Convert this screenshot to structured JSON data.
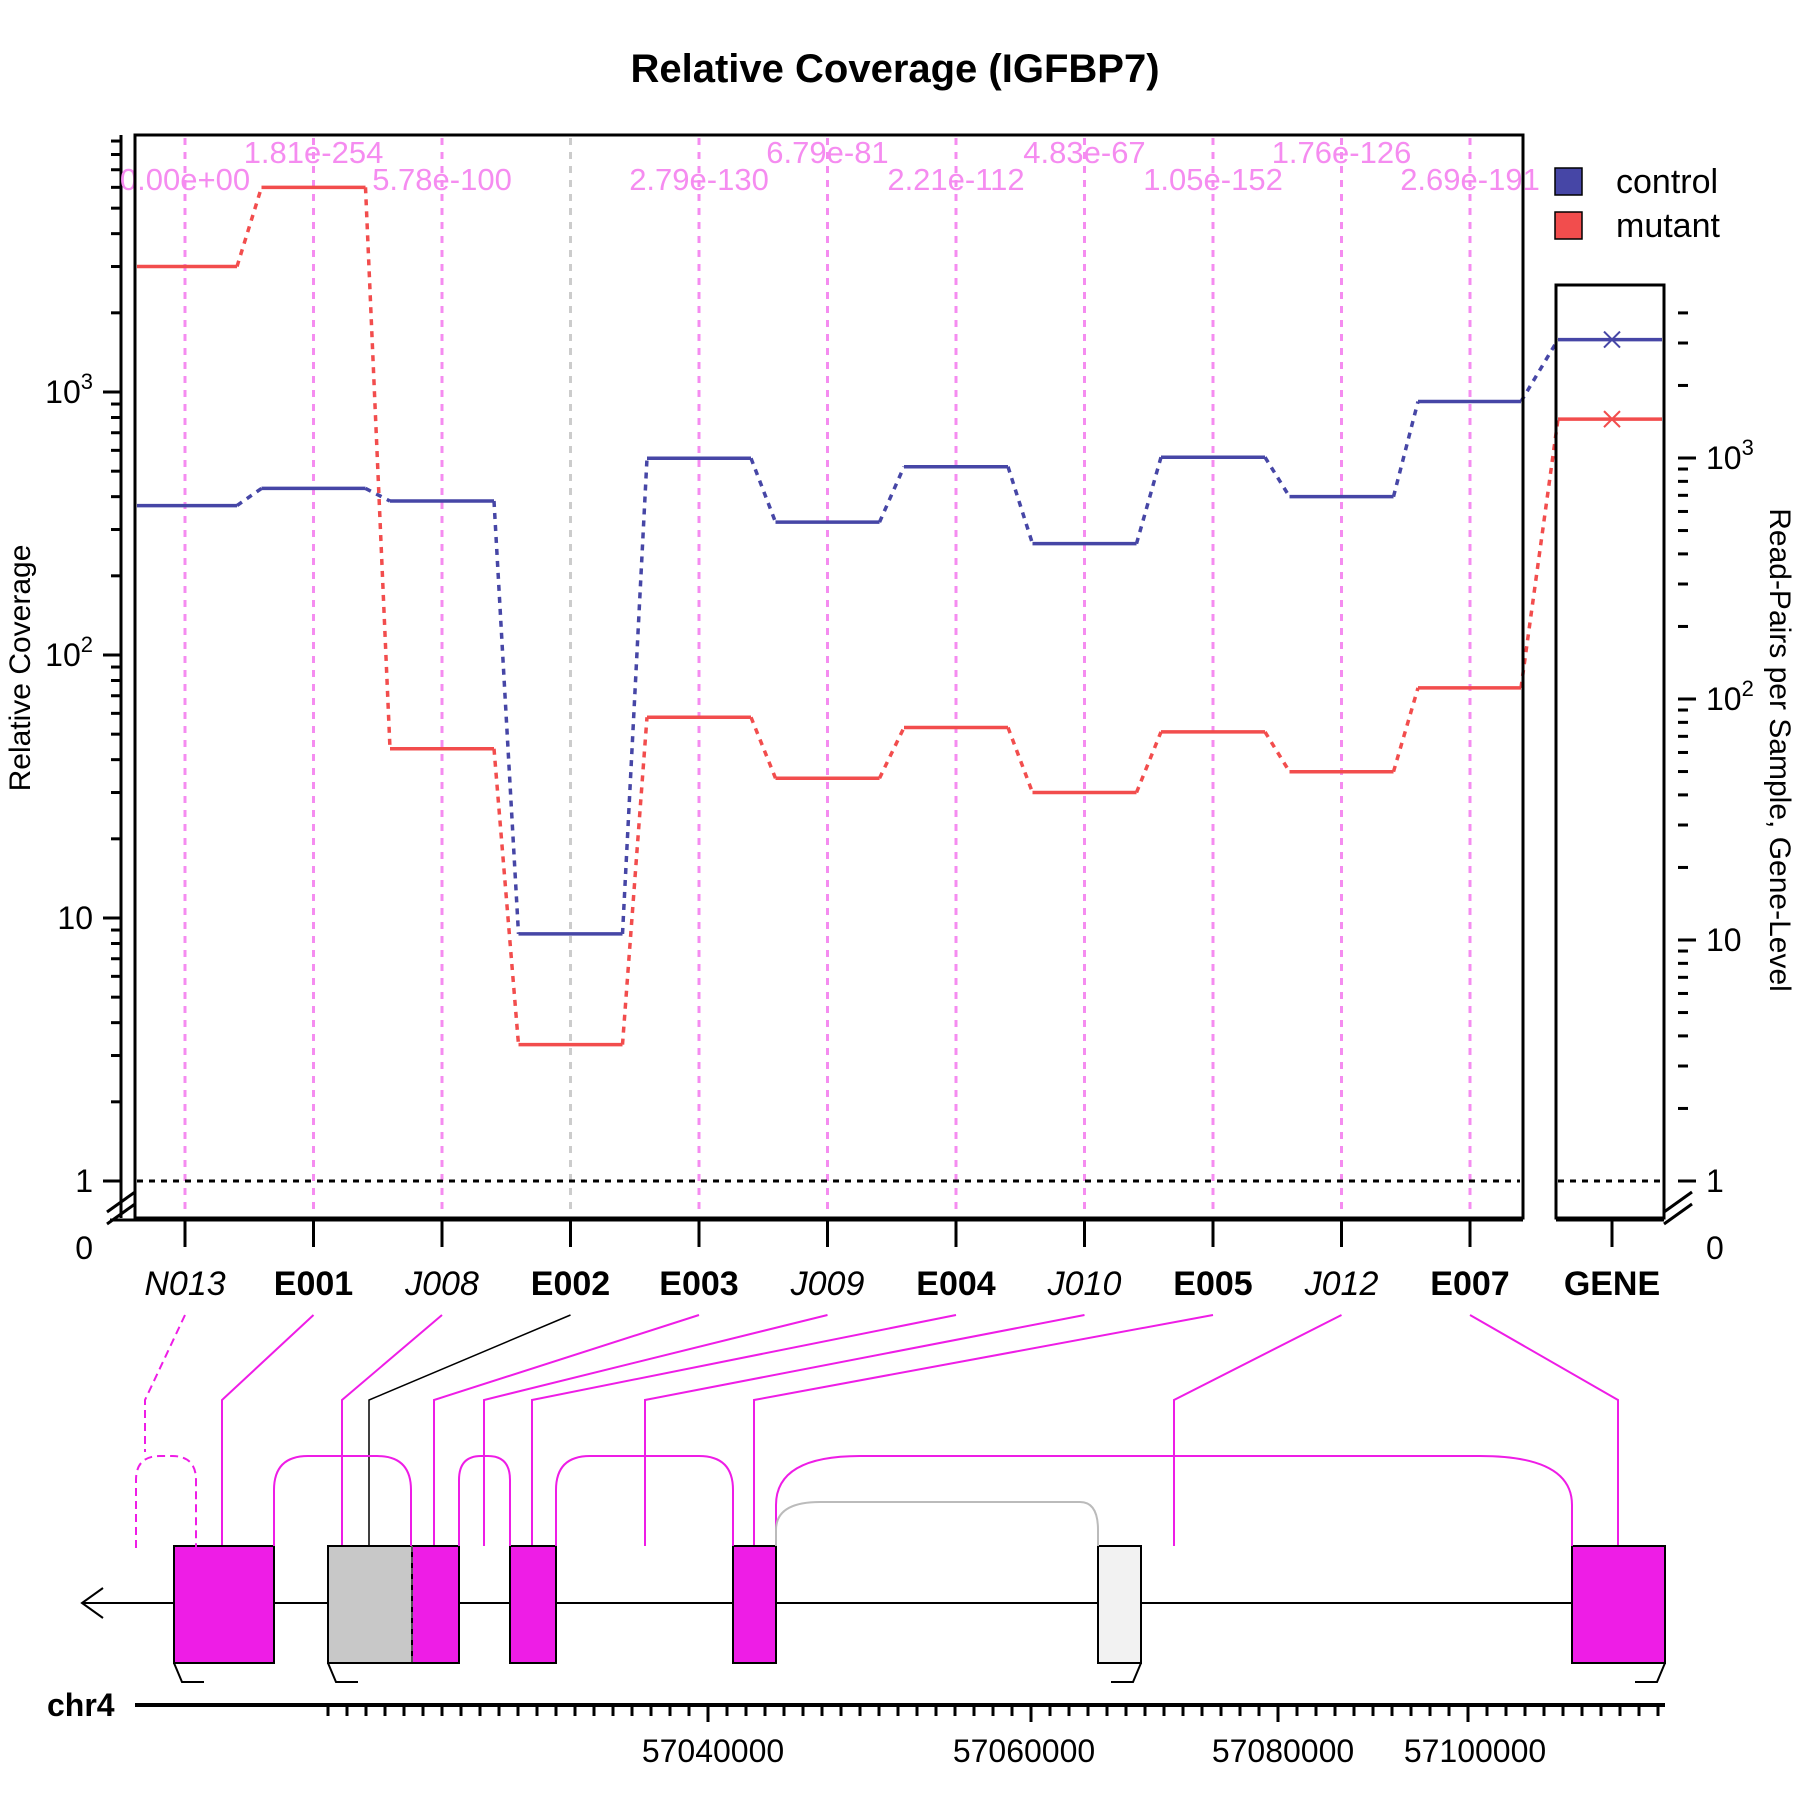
{
  "chart_data": {
    "type": "line",
    "title": "Relative Coverage (IGFBP7)",
    "ylabel_left": "Relative Coverage",
    "ylabel_right": "Read-Pairs per Sample, Gene-Level",
    "y_scale": "log",
    "y_ticks_left": [
      "0",
      "1",
      "10",
      "10^2",
      "10^3"
    ],
    "y_ticks_right": [
      "0",
      "1",
      "10",
      "10^2",
      "10^3"
    ],
    "features": [
      {
        "label": "N013",
        "style": "italic"
      },
      {
        "label": "E001",
        "style": "bold"
      },
      {
        "label": "J008",
        "style": "italic"
      },
      {
        "label": "E002",
        "style": "bold"
      },
      {
        "label": "E003",
        "style": "bold"
      },
      {
        "label": "J009",
        "style": "italic"
      },
      {
        "label": "E004",
        "style": "bold"
      },
      {
        "label": "J010",
        "style": "italic"
      },
      {
        "label": "E005",
        "style": "bold"
      },
      {
        "label": "J012",
        "style": "italic"
      },
      {
        "label": "E007",
        "style": "bold"
      }
    ],
    "gene_label": "GENE",
    "pvalues": [
      "0.00e+00",
      "1.81e-254",
      "5.78e-100",
      "",
      "2.79e-130",
      "6.79e-81",
      "2.21e-112",
      "4.83e-67",
      "1.05e-152",
      "1.76e-126",
      "2.69e-191"
    ],
    "series": [
      {
        "name": "control",
        "color": "#4646a6",
        "values": [
          370,
          430,
          385,
          8.7,
          560,
          320,
          520,
          265,
          565,
          400,
          920
        ],
        "gene_value": 3100
      },
      {
        "name": "mutant",
        "color": "#f24d4d",
        "values": [
          3000,
          6000,
          44,
          3.3,
          58,
          34,
          53,
          30,
          51,
          36,
          75
        ],
        "gene_value": 1450
      }
    ],
    "reference_line": 1,
    "legend_position": "top-right",
    "chromosome": "chr4",
    "genomic_ticks": [
      "57040000",
      "57060000",
      "57080000",
      "57100000"
    ]
  }
}
